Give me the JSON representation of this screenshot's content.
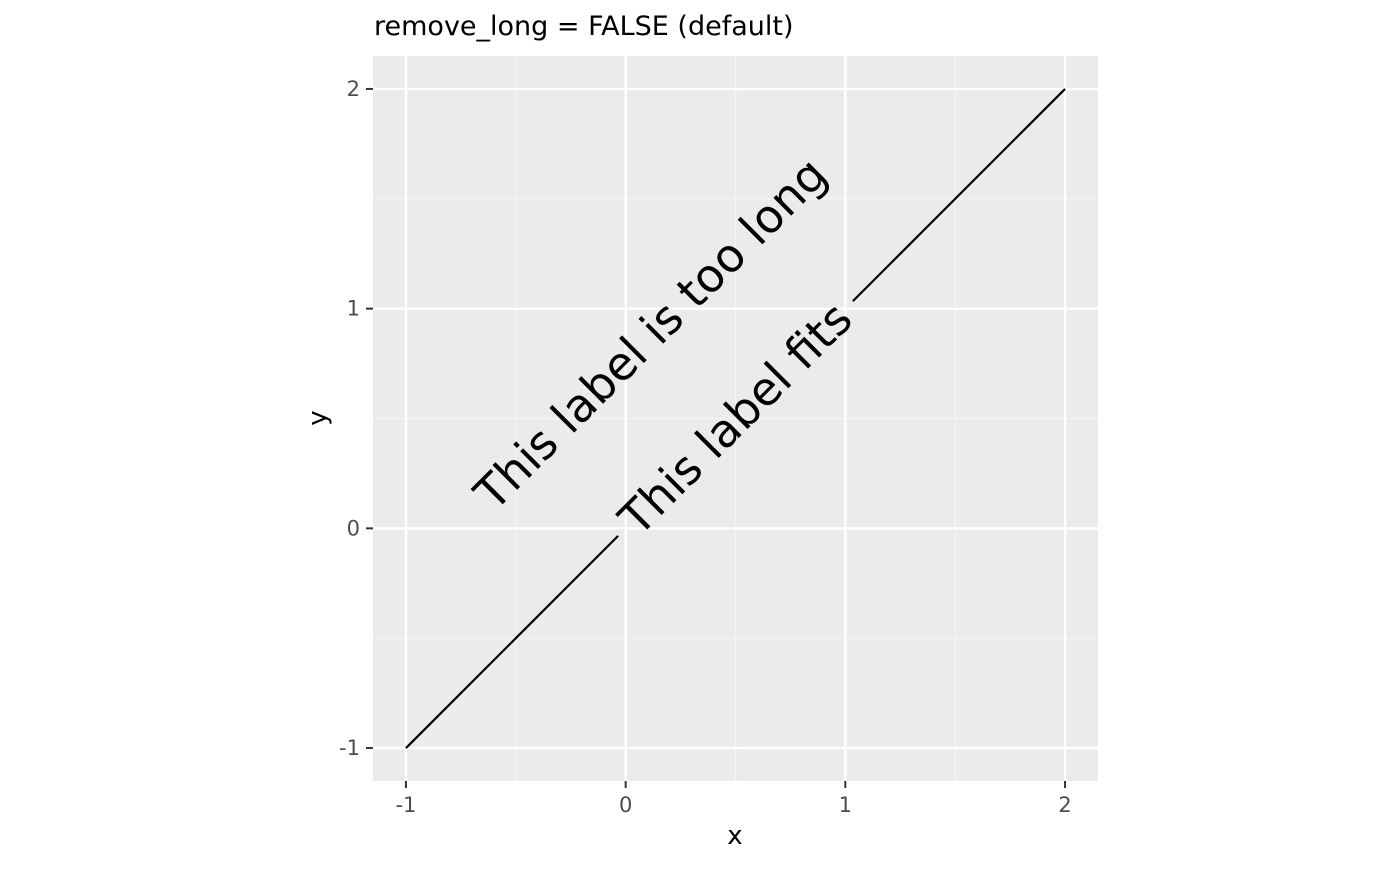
{
  "chart_data": {
    "type": "line",
    "title": "remove_long = FALSE (default)",
    "xlabel": "x",
    "ylabel": "y",
    "xlim": [
      -1.15,
      2.15
    ],
    "ylim": [
      -1.15,
      2.15
    ],
    "x_ticks": [
      -1,
      0,
      1,
      2
    ],
    "y_ticks": [
      -1,
      0,
      1,
      2
    ],
    "x_tick_labels": [
      "-1",
      "0",
      "1",
      "2"
    ],
    "y_tick_labels": [
      "-1",
      "0",
      "1",
      "2"
    ],
    "grid": true,
    "series": [
      {
        "x": [
          -1,
          2
        ],
        "y": [
          -1,
          2
        ],
        "color": "#000000"
      }
    ],
    "annotations": [
      {
        "text": "This label fits",
        "x": 0.5,
        "y": 0.5,
        "angle": 45,
        "on_line": true
      },
      {
        "text": "This label is too long",
        "x": 0.5,
        "y": 0.5,
        "angle": 45,
        "on_line": false
      }
    ],
    "colors": {
      "panel_background": "#EBEBEB",
      "grid_major": "#FFFFFF",
      "grid_minor": "#F5F5F5",
      "tick_text": "#4D4D4D",
      "text": "#000000"
    }
  }
}
